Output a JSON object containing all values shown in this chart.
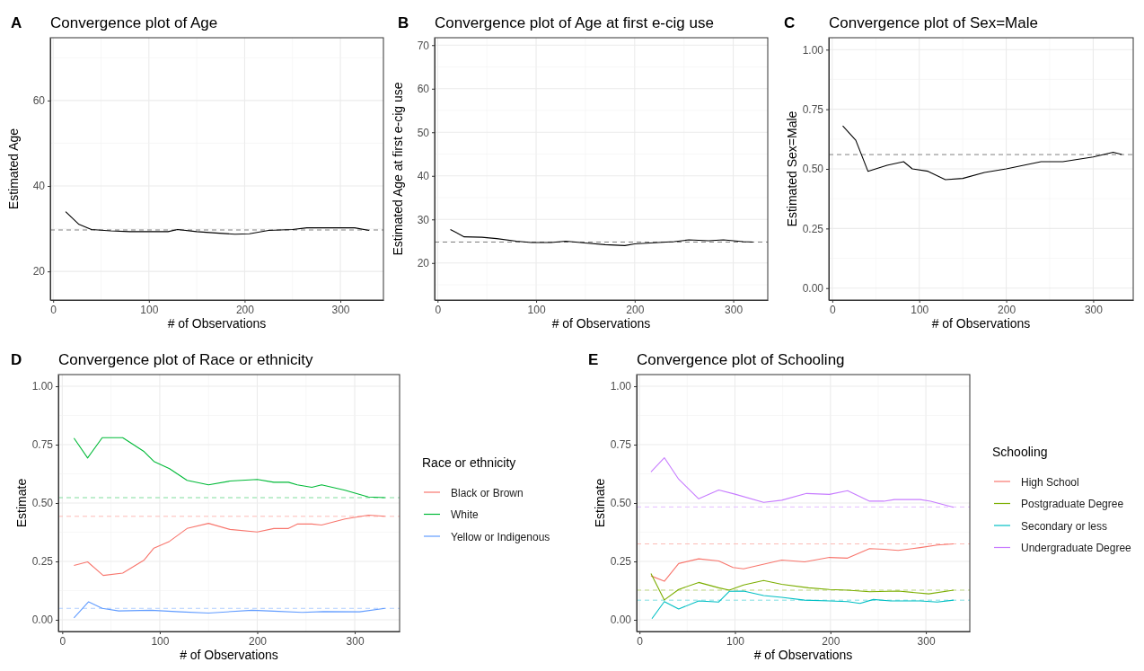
{
  "chart_data": [
    {
      "type": "line",
      "title": "Convergence plot of Age",
      "xlabel": "# of Observations",
      "ylabel": "Estimated Age",
      "annotations": [
        "A"
      ],
      "xlim": [
        -3,
        345
      ],
      "ylim": [
        13.3,
        74.7
      ],
      "xticks": [
        0,
        100,
        200,
        300
      ],
      "yticks": [
        20,
        40,
        60
      ],
      "grid": true,
      "series": [
        {
          "color": "#000000",
          "x": [
            13,
            27,
            40,
            60,
            80,
            120,
            130,
            150,
            170,
            190,
            205,
            225,
            250,
            265,
            315,
            330
          ],
          "values": [
            34,
            31,
            29.8,
            29.5,
            29.3,
            29.3,
            29.8,
            29.3,
            29.0,
            28.7,
            28.8,
            29.6,
            29.8,
            30.2,
            30.2,
            29.6
          ]
        }
      ],
      "ref_lines": [
        {
          "axis": "y",
          "value": 29.7,
          "color": "#808080",
          "line_style": "dashed"
        }
      ]
    },
    {
      "type": "line",
      "title": "Convergence plot of Age at first e-cig use",
      "xlabel": "# of Observations",
      "ylabel": "Estimated Age at first e-cig use",
      "annotations": [
        "B"
      ],
      "xlim": [
        -3,
        335
      ],
      "ylim": [
        11.5,
        71.7
      ],
      "xticks": [
        0,
        100,
        200,
        300
      ],
      "yticks": [
        20,
        30,
        40,
        50,
        60,
        70
      ],
      "grid": true,
      "series": [
        {
          "color": "#000000",
          "x": [
            13,
            27,
            45,
            60,
            80,
            95,
            115,
            130,
            150,
            170,
            190,
            200,
            240,
            255,
            275,
            290,
            310,
            320
          ],
          "values": [
            27.7,
            26,
            25.9,
            25.6,
            25,
            24.7,
            24.7,
            25,
            24.6,
            24.2,
            24,
            24.4,
            24.9,
            25.3,
            25.1,
            25.3,
            24.9,
            24.8
          ]
        }
      ],
      "ref_lines": [
        {
          "axis": "y",
          "value": 24.8,
          "color": "#808080",
          "line_style": "dashed"
        }
      ]
    },
    {
      "type": "line",
      "title": "Convergence plot of Sex=Male",
      "xlabel": "# of Observations",
      "ylabel": "Estimated Sex=Male",
      "annotations": [
        "C"
      ],
      "xlim": [
        -4,
        346
      ],
      "ylim": [
        -0.05,
        1.05
      ],
      "xticks": [
        0,
        100,
        200,
        300
      ],
      "yticks": [
        {
          "value": 0,
          "label": "0.00"
        },
        {
          "value": 0.25,
          "label": "0.25"
        },
        {
          "value": 0.5,
          "label": "0.50"
        },
        {
          "value": 0.75,
          "label": "0.75"
        },
        {
          "value": 1,
          "label": "1.00"
        }
      ],
      "grid": true,
      "series": [
        {
          "color": "#000000",
          "x": [
            12,
            27,
            41,
            63,
            82,
            92,
            110,
            130,
            150,
            175,
            200,
            240,
            265,
            300,
            323,
            333
          ],
          "values": [
            0.68,
            0.62,
            0.49,
            0.515,
            0.53,
            0.5,
            0.49,
            0.455,
            0.46,
            0.485,
            0.5,
            0.53,
            0.53,
            0.55,
            0.57,
            0.56
          ]
        }
      ],
      "ref_lines": [
        {
          "axis": "y",
          "value": 0.56,
          "color": "#808080",
          "line_style": "dashed"
        }
      ]
    },
    {
      "type": "line",
      "title": "Convergence plot of Race or ethnicity",
      "xlabel": "# of Observations",
      "ylabel": "Estimate",
      "annotations": [
        "D"
      ],
      "legend_title": "Race or ethnicity",
      "legend": "right",
      "xlim": [
        -4,
        346
      ],
      "ylim": [
        -0.05,
        1.05
      ],
      "xticks": [
        0,
        100,
        200,
        300
      ],
      "yticks": [
        {
          "value": 0,
          "label": "0.00"
        },
        {
          "value": 0.25,
          "label": "0.25"
        },
        {
          "value": 0.5,
          "label": "0.50"
        },
        {
          "value": 0.75,
          "label": "0.75"
        },
        {
          "value": 1,
          "label": "1.00"
        }
      ],
      "grid": true,
      "series": [
        {
          "name": "Black or Brown",
          "color": "#f8766d",
          "x": [
            12,
            26,
            42,
            62,
            84,
            94,
            110,
            128,
            150,
            172,
            200,
            217,
            232,
            241,
            256,
            266,
            290,
            314,
            331
          ],
          "values": [
            0.233,
            0.248,
            0.19,
            0.2,
            0.256,
            0.307,
            0.336,
            0.391,
            0.413,
            0.387,
            0.376,
            0.391,
            0.391,
            0.41,
            0.41,
            0.406,
            0.432,
            0.448,
            0.443
          ]
        },
        {
          "name": "White",
          "color": "#00ba38",
          "x": [
            12,
            26,
            41,
            62,
            84,
            94,
            110,
            128,
            150,
            172,
            200,
            217,
            232,
            241,
            256,
            266,
            290,
            314,
            331
          ],
          "values": [
            0.778,
            0.693,
            0.78,
            0.78,
            0.72,
            0.678,
            0.647,
            0.597,
            0.578,
            0.594,
            0.601,
            0.589,
            0.589,
            0.578,
            0.567,
            0.578,
            0.555,
            0.526,
            0.523
          ]
        },
        {
          "name": "Yellow or Indigenous",
          "color": "#619cff",
          "x": [
            12,
            27,
            41,
            58,
            91,
            121,
            150,
            195,
            217,
            246,
            268,
            305,
            331
          ],
          "values": [
            0.008,
            0.077,
            0.049,
            0.038,
            0.041,
            0.034,
            0.029,
            0.041,
            0.037,
            0.032,
            0.035,
            0.034,
            0.049
          ]
        }
      ],
      "ref_lines": [
        {
          "axis": "y",
          "value": 0.523,
          "color": "#80dd9c",
          "line_style": "dashed"
        },
        {
          "axis": "y",
          "value": 0.443,
          "color": "#fcbbb6",
          "line_style": "dashed"
        },
        {
          "axis": "y",
          "value": 0.049,
          "color": "#b0ceff",
          "line_style": "dashed"
        }
      ]
    },
    {
      "type": "line",
      "title": "Convergence plot of Schooling",
      "xlabel": "# of Observations",
      "ylabel": "Estimate",
      "annotations": [
        "E"
      ],
      "legend_title": "Schooling",
      "legend": "right",
      "xlim": [
        -3,
        346
      ],
      "ylim": [
        -0.05,
        1.05
      ],
      "xticks": [
        0,
        100,
        200,
        300
      ],
      "yticks": [
        {
          "value": 0,
          "label": "0.00"
        },
        {
          "value": 0.25,
          "label": "0.25"
        },
        {
          "value": 0.5,
          "label": "0.50"
        },
        {
          "value": 0.75,
          "label": "0.75"
        },
        {
          "value": 1,
          "label": "1.00"
        }
      ],
      "grid": true,
      "series": [
        {
          "name": "High School",
          "color": "#f8766d",
          "x": [
            12,
            26,
            41,
            62,
            83,
            98,
            109,
            149,
            173,
            199,
            218,
            241,
            256,
            271,
            294,
            312,
            329
          ],
          "values": [
            0.188,
            0.165,
            0.241,
            0.261,
            0.252,
            0.224,
            0.218,
            0.256,
            0.248,
            0.267,
            0.264,
            0.305,
            0.302,
            0.297,
            0.309,
            0.32,
            0.325
          ]
        },
        {
          "name": "Postgraduate Degree",
          "color": "#7cae00",
          "x": [
            12,
            26,
            41,
            62,
            83,
            94,
            109,
            130,
            149,
            177,
            199,
            218,
            241,
            271,
            303,
            329
          ],
          "values": [
            0.198,
            0.085,
            0.13,
            0.16,
            0.137,
            0.127,
            0.149,
            0.168,
            0.152,
            0.137,
            0.13,
            0.127,
            0.12,
            0.123,
            0.111,
            0.127
          ]
        },
        {
          "name": "Secondary or less",
          "color": "#00bfc4",
          "x": [
            13,
            26,
            41,
            62,
            83,
            94,
            109,
            130,
            149,
            173,
            199,
            218,
            231,
            245,
            263,
            294,
            312,
            329
          ],
          "values": [
            0.005,
            0.078,
            0.046,
            0.081,
            0.076,
            0.122,
            0.123,
            0.104,
            0.096,
            0.084,
            0.081,
            0.078,
            0.07,
            0.087,
            0.081,
            0.081,
            0.076,
            0.084
          ]
        },
        {
          "name": "Undergraduate Degree",
          "color": "#c77cff",
          "x": [
            12,
            26,
            41,
            62,
            83,
            100,
            130,
            149,
            175,
            199,
            218,
            241,
            256,
            267,
            294,
            305,
            329
          ],
          "values": [
            0.633,
            0.694,
            0.602,
            0.518,
            0.556,
            0.538,
            0.503,
            0.512,
            0.541,
            0.537,
            0.553,
            0.508,
            0.508,
            0.515,
            0.515,
            0.508,
            0.482
          ]
        }
      ],
      "ref_lines": [
        {
          "axis": "y",
          "value": 0.483,
          "color": "#e3beff",
          "line_style": "dashed"
        },
        {
          "axis": "y",
          "value": 0.325,
          "color": "#fcbbb6",
          "line_style": "dashed"
        },
        {
          "axis": "y",
          "value": 0.127,
          "color": "#bed780",
          "line_style": "dashed"
        },
        {
          "axis": "y",
          "value": 0.084,
          "color": "#80dfe2",
          "line_style": "dashed"
        }
      ]
    }
  ]
}
